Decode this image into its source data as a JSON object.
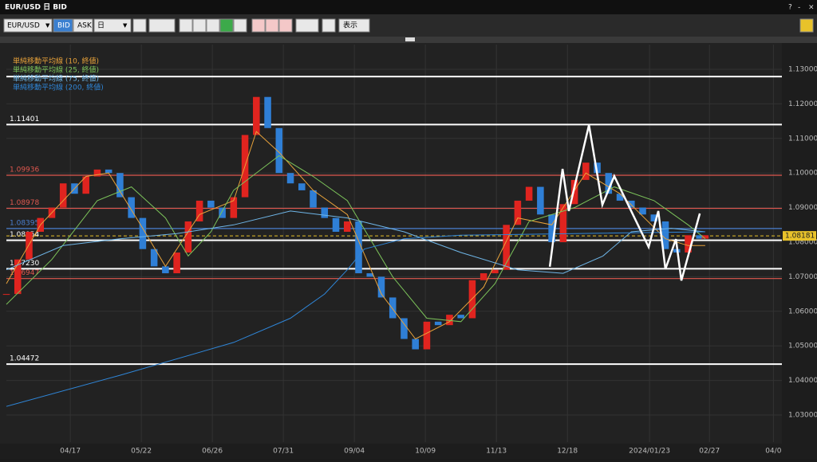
{
  "window": {
    "title": "EUR/USD 日 BID",
    "buttons": [
      "?",
      "‐",
      "×"
    ]
  },
  "toolbar": {
    "symbol": "EUR/USD",
    "bid": "BID",
    "ask": "ASK",
    "period": "日",
    "view": "表示"
  },
  "chart_data": {
    "type": "candlestick",
    "x": [
      0,
      4,
      8,
      12,
      16,
      20,
      24,
      28,
      32,
      36,
      40,
      44,
      48,
      52,
      56,
      60,
      64,
      68,
      72,
      76,
      80,
      84,
      88,
      92,
      96,
      100,
      104,
      108,
      112,
      116,
      120,
      124,
      128,
      132,
      136,
      140,
      144,
      148,
      152,
      156,
      160,
      164,
      168,
      172,
      176,
      180,
      184,
      188,
      192,
      196,
      200,
      204,
      208,
      212,
      216,
      220,
      224,
      228,
      232,
      236,
      240,
      244,
      246
    ],
    "values": [
      1.065,
      1.075,
      1.083,
      1.087,
      1.09,
      1.097,
      1.094,
      1.099,
      1.101,
      1.1,
      1.093,
      1.087,
      1.078,
      1.073,
      1.071,
      1.077,
      1.086,
      1.092,
      1.09,
      1.087,
      1.093,
      1.111,
      1.122,
      1.113,
      1.1,
      1.097,
      1.095,
      1.09,
      1.087,
      1.083,
      1.086,
      1.071,
      1.07,
      1.064,
      1.058,
      1.052,
      1.049,
      1.057,
      1.056,
      1.059,
      1.058,
      1.069,
      1.071,
      1.072,
      1.085,
      1.092,
      1.096,
      1.088,
      1.08,
      1.091,
      1.098,
      1.103,
      1.1,
      1.094,
      1.092,
      1.09,
      1.088,
      1.086,
      1.078,
      1.077,
      1.082,
      1.081,
      1.082
    ],
    "up_color": "#e0241f",
    "down_color": "#2f7fd6",
    "series": [
      {
        "name": "単純移動平均線 (10, 終値)",
        "color": "#e8a23a",
        "x": [
          0,
          12,
          28,
          36,
          48,
          56,
          68,
          80,
          88,
          96,
          108,
          120,
          132,
          144,
          156,
          168,
          180,
          192,
          204,
          216,
          232,
          240,
          246
        ],
        "values": [
          1.068,
          1.085,
          1.099,
          1.1,
          1.084,
          1.073,
          1.088,
          1.092,
          1.112,
          1.106,
          1.095,
          1.088,
          1.065,
          1.052,
          1.057,
          1.067,
          1.087,
          1.085,
          1.1,
          1.094,
          1.081,
          1.079,
          1.079
        ]
      },
      {
        "name": "単純移動平均線 (25, 終値)",
        "color": "#7cc35a",
        "x": [
          0,
          16,
          32,
          44,
          56,
          64,
          72,
          80,
          96,
          108,
          120,
          136,
          148,
          160,
          172,
          184,
          200,
          214,
          228,
          240,
          246
        ],
        "values": [
          1.062,
          1.075,
          1.092,
          1.096,
          1.087,
          1.076,
          1.083,
          1.095,
          1.105,
          1.099,
          1.092,
          1.07,
          1.058,
          1.057,
          1.068,
          1.086,
          1.09,
          1.096,
          1.092,
          1.085,
          1.081
        ]
      },
      {
        "name": "単純移動平均線 (75, 終値)",
        "color": "#6fb6e8",
        "x": [
          0,
          20,
          40,
          60,
          80,
          100,
          120,
          140,
          160,
          180,
          196,
          210,
          220,
          234,
          246
        ],
        "values": [
          1.072,
          1.079,
          1.081,
          1.0825,
          1.085,
          1.089,
          1.087,
          1.083,
          1.077,
          1.072,
          1.071,
          1.076,
          1.083,
          1.084,
          1.083
        ]
      },
      {
        "name": "単純移動平均線 (200, 終値)",
        "color": "#2f86d8",
        "x": [
          0,
          40,
          80,
          100,
          112,
          120,
          126,
          140,
          160,
          200,
          246
        ],
        "values": [
          1.0325,
          1.0415,
          1.051,
          1.058,
          1.065,
          1.072,
          1.078,
          1.081,
          1.082,
          1.0825,
          1.083
        ]
      }
    ],
    "zigzag": {
      "color": "#ffffff",
      "x": [
        191.3,
        195.8,
        198.0,
        205.1,
        209.8,
        214.0,
        226.1,
        229.5,
        232.0,
        235.7,
        237.6,
        244.1
      ],
      "values": [
        1.0729,
        1.1012,
        1.089,
        1.1139,
        1.0908,
        1.0991,
        1.0786,
        1.089,
        1.0722,
        1.0809,
        1.0689,
        1.0883
      ]
    },
    "levels": [
      {
        "value": 1.1279,
        "color": "#ffffff"
      },
      {
        "value": 1.11401,
        "label": "1.11401",
        "color": "#ffffff"
      },
      {
        "value": 1.09936,
        "label": "1.09936",
        "color": "#e0584f"
      },
      {
        "value": 1.08978,
        "label": "1.08978",
        "color": "#e0584f"
      },
      {
        "value": 1.08395,
        "label": "1.08395",
        "color": "#4a7fd0"
      },
      {
        "value": 1.08054,
        "label": "1.08054",
        "color": "#ffffff"
      },
      {
        "value": 1.0723,
        "label": "1.07230",
        "color": "#ffffff"
      },
      {
        "value": 1.06947,
        "label": "1.06947",
        "color": "#e0584f"
      },
      {
        "value": 1.04472,
        "label": "1.04472",
        "color": "#ffffff"
      }
    ],
    "current_price": {
      "value": 1.08181,
      "label": "1.08181",
      "color": "#e8c22a"
    },
    "xlim": [
      0,
      273
    ],
    "ylim": [
      1.02217,
      1.13714
    ],
    "xticks": [
      {
        "value": 22.5,
        "label": "04/17"
      },
      {
        "value": 47.5,
        "label": "05/22"
      },
      {
        "value": 72.5,
        "label": "06/26"
      },
      {
        "value": 97.5,
        "label": "07/31"
      },
      {
        "value": 122.5,
        "label": "09/04"
      },
      {
        "value": 147.5,
        "label": "10/09"
      },
      {
        "value": 172.5,
        "label": "11/13"
      },
      {
        "value": 197.5,
        "label": "12/18"
      },
      {
        "value": 226.4,
        "label": "2024/01/23"
      },
      {
        "value": 247.5,
        "label": "02/27"
      },
      {
        "value": 270,
        "label": "04/0"
      }
    ],
    "yticks": [
      {
        "value": 1.03,
        "label": "1.03000"
      },
      {
        "value": 1.04,
        "label": "1.04000"
      },
      {
        "value": 1.05,
        "label": "1.05000"
      },
      {
        "value": 1.06,
        "label": "1.06000"
      },
      {
        "value": 1.07,
        "label": "1.07000"
      },
      {
        "value": 1.08,
        "label": "1.08000"
      },
      {
        "value": 1.09,
        "label": "1.09000"
      },
      {
        "value": 1.1,
        "label": "1.10000"
      },
      {
        "value": 1.11,
        "label": "1.11000"
      },
      {
        "value": 1.12,
        "label": "1.12000"
      },
      {
        "value": 1.13,
        "label": "1.13000"
      }
    ],
    "grid": true
  }
}
